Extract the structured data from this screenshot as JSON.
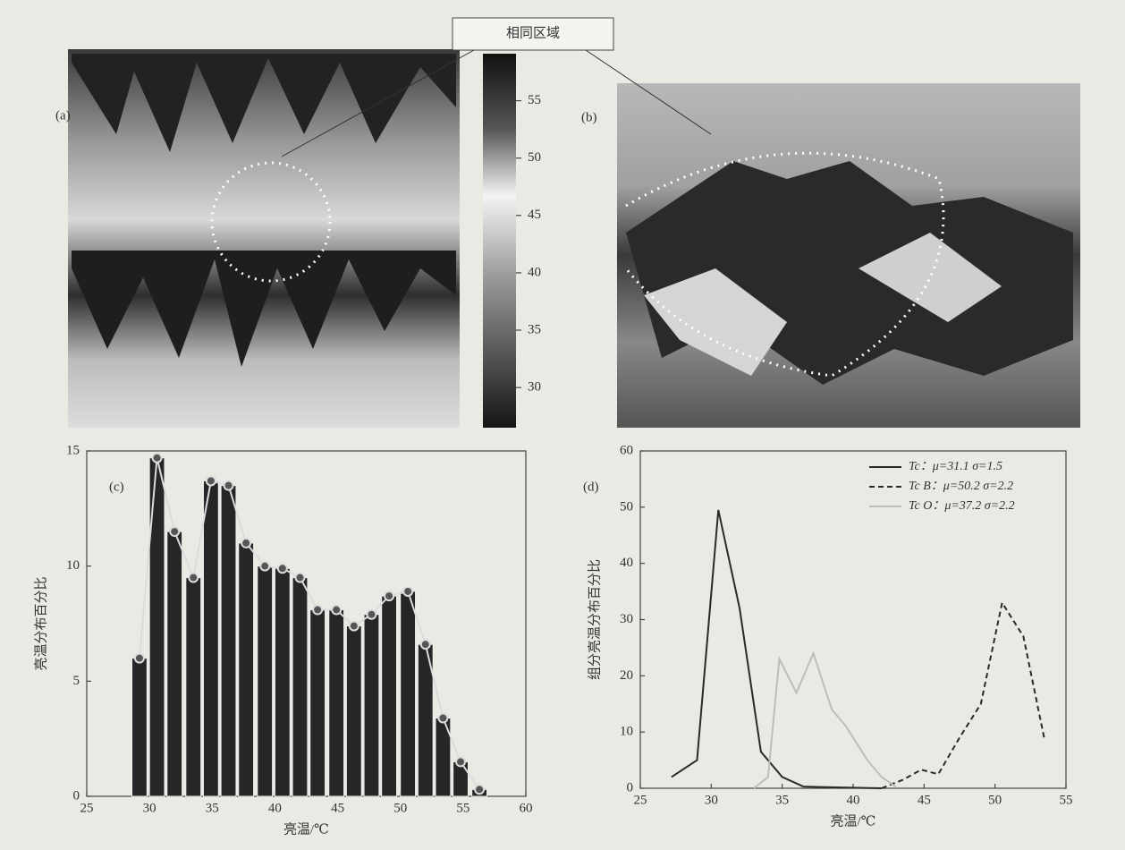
{
  "chart_data": [
    {
      "type": "heatmap",
      "panel_label": "(a)",
      "annotation": "相同区域",
      "colorbar_lim": [
        26.5,
        59.1
      ],
      "colorbar_ticks": [
        30,
        35,
        40,
        45,
        50,
        55
      ]
    },
    {
      "type": "image",
      "panel_label": "(b)"
    },
    {
      "type": "bar",
      "panel_label": "(c)",
      "xlabel": "亮温/℃",
      "ylabel": "亮温分布百分比",
      "x": [
        29.2,
        30.6,
        32.0,
        33.5,
        34.9,
        36.3,
        37.7,
        39.2,
        40.6,
        42.0,
        43.4,
        44.9,
        46.3,
        47.7,
        49.1,
        50.6,
        52.0,
        53.4,
        54.8,
        56.3
      ],
      "values": [
        6,
        14.7,
        11.5,
        9.5,
        13.7,
        13.5,
        11,
        10,
        9.9,
        9.5,
        8.1,
        8.1,
        7.4,
        7.9,
        8.7,
        8.9,
        6.6,
        3.4,
        1.5,
        0.3
      ],
      "color": "#262626",
      "line_color": "#dcdcdc",
      "xlim": [
        25,
        60
      ],
      "xticks": [
        25,
        30,
        35,
        40,
        45,
        50,
        55,
        60
      ],
      "ylim": [
        0,
        15
      ],
      "yticks": [
        0,
        5,
        10,
        15
      ]
    },
    {
      "type": "line",
      "panel_label": "(d)",
      "xlabel": "亮温/℃",
      "ylabel": "组分亮温分布百分比",
      "legend": "upper right",
      "series": [
        {
          "name": "Tc：μ=31.1 σ=1.5",
          "color": "#2a2a2a",
          "dash": "solid",
          "x": [
            27.2,
            29,
            30.5,
            32,
            33.5,
            35,
            36.5,
            38,
            40,
            42
          ],
          "values": [
            2,
            5,
            49.5,
            32,
            6.5,
            2,
            0.3,
            0.2,
            0.1,
            0
          ]
        },
        {
          "name": "Tc B：μ=50.2 σ=2.2",
          "color": "#2a2a2a",
          "dash": "dashed",
          "x": [
            42,
            43.5,
            44.8,
            46,
            47.5,
            49,
            50.5,
            52,
            53.5
          ],
          "values": [
            0,
            1.5,
            3.3,
            2.5,
            9,
            15,
            33,
            27,
            8.5
          ]
        },
        {
          "name": "Tc O：μ=37.2 σ=2.2",
          "color": "#bdbdbd",
          "dash": "solid",
          "x": [
            33,
            34,
            34.8,
            36,
            37.2,
            38.5,
            39.5,
            41,
            42,
            43
          ],
          "values": [
            0,
            2,
            23,
            17,
            24,
            14,
            11,
            5,
            2,
            0.3
          ]
        }
      ],
      "xlim": [
        25,
        55
      ],
      "xticks": [
        25,
        30,
        35,
        40,
        45,
        50,
        55
      ],
      "ylim": [
        0,
        60
      ],
      "yticks": [
        0,
        10,
        20,
        30,
        40,
        50,
        60
      ]
    }
  ]
}
